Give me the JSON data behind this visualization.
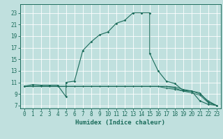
{
  "xlabel": "Humidex (Indice chaleur)",
  "bg_color": "#c0e0de",
  "grid_color": "#aed4d0",
  "line_color": "#1a6b5a",
  "spine_color": "#1a6b5a",
  "xlim": [
    -0.5,
    23.5
  ],
  "ylim": [
    6.5,
    24.5
  ],
  "xticks": [
    0,
    1,
    2,
    3,
    4,
    5,
    6,
    7,
    8,
    9,
    10,
    11,
    12,
    13,
    14,
    15,
    16,
    17,
    18,
    19,
    20,
    21,
    22,
    23
  ],
  "yticks": [
    7,
    9,
    11,
    13,
    15,
    17,
    19,
    21,
    23
  ],
  "main_line_x": [
    0,
    1,
    2,
    3,
    4,
    5,
    5,
    6,
    7,
    8,
    9,
    10,
    11,
    12,
    13,
    14,
    15,
    15,
    16,
    17,
    18,
    19,
    20,
    21,
    22,
    23
  ],
  "main_line_y": [
    10.3,
    10.6,
    10.5,
    10.5,
    10.5,
    8.5,
    11.0,
    11.2,
    16.5,
    18.0,
    19.2,
    19.7,
    21.2,
    21.7,
    23.0,
    23.0,
    23.0,
    16.0,
    13.0,
    11.2,
    10.8,
    9.6,
    9.5,
    7.8,
    7.2,
    7.0
  ],
  "sub_lines": [
    {
      "x": [
        0,
        1,
        2,
        3,
        4,
        5,
        6,
        7,
        8,
        9,
        10,
        11,
        12,
        13,
        14,
        15,
        16,
        17,
        18,
        19,
        20,
        21,
        22,
        23
      ],
      "y": [
        10.3,
        10.3,
        10.3,
        10.3,
        10.3,
        10.3,
        10.3,
        10.3,
        10.3,
        10.3,
        10.3,
        10.3,
        10.3,
        10.3,
        10.3,
        10.3,
        10.3,
        10.3,
        10.0,
        9.5,
        9.5,
        9.0,
        7.8,
        7.0
      ]
    },
    {
      "x": [
        0,
        1,
        2,
        3,
        4,
        5,
        6,
        7,
        8,
        9,
        10,
        11,
        12,
        13,
        14,
        15,
        16,
        17,
        18,
        19,
        20,
        21,
        22,
        23
      ],
      "y": [
        10.3,
        10.3,
        10.3,
        10.3,
        10.3,
        10.3,
        10.3,
        10.3,
        10.3,
        10.3,
        10.3,
        10.3,
        10.3,
        10.3,
        10.3,
        10.3,
        10.3,
        10.0,
        9.8,
        9.5,
        9.2,
        8.8,
        7.5,
        7.0
      ]
    },
    {
      "x": [
        0,
        1,
        2,
        3,
        4,
        5,
        6,
        7,
        8,
        9,
        10,
        11,
        12,
        13,
        14,
        15,
        16,
        17,
        18,
        19,
        20,
        21,
        22,
        23
      ],
      "y": [
        10.3,
        10.3,
        10.3,
        10.3,
        10.3,
        10.3,
        10.3,
        10.3,
        10.3,
        10.3,
        10.3,
        10.3,
        10.3,
        10.3,
        10.3,
        10.3,
        10.3,
        10.3,
        10.2,
        9.8,
        9.5,
        9.2,
        7.6,
        7.0
      ]
    }
  ],
  "tick_fontsize": 5.5,
  "label_fontsize": 6.5
}
